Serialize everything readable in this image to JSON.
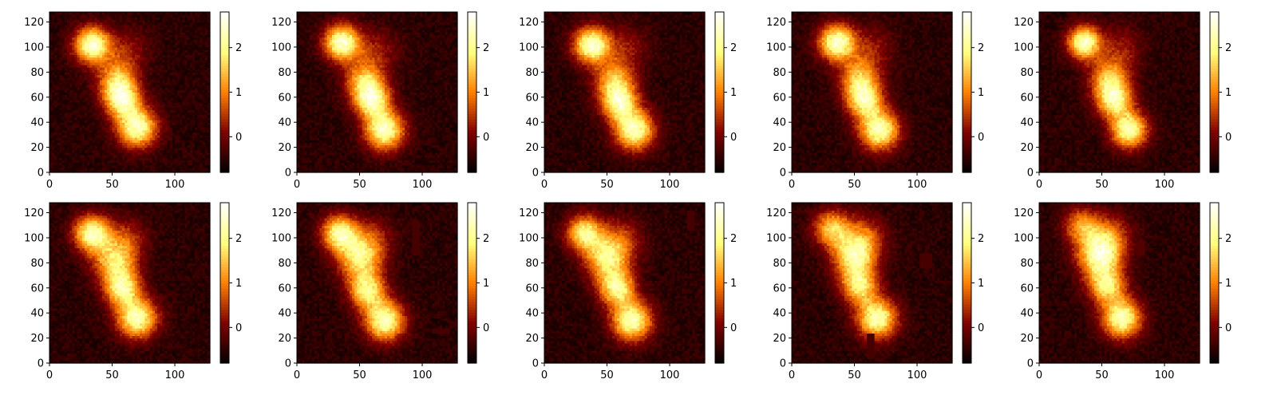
{
  "chart_data": {
    "type": "heatmap",
    "colormap": "afmhot",
    "grid": false,
    "layout": {
      "rows": 2,
      "cols": 5
    },
    "x_ticks": [
      0,
      50,
      100
    ],
    "y_ticks": [
      0,
      20,
      40,
      60,
      80,
      100,
      120
    ],
    "xlim": [
      0,
      128
    ],
    "ylim": [
      0,
      128
    ],
    "colorbar": {
      "ticks": [
        0,
        1,
        2
      ],
      "range": [
        -0.8,
        2.8
      ]
    },
    "panels": [
      {
        "blobs": [
          {
            "x": 34,
            "y": 102,
            "amp": 3.0,
            "sigma": 10
          },
          {
            "x": 54,
            "y": 74,
            "amp": 1.8,
            "sigma": 11
          },
          {
            "x": 58,
            "y": 58,
            "amp": 2.4,
            "sigma": 10
          },
          {
            "x": 70,
            "y": 36,
            "amp": 2.8,
            "sigma": 11
          },
          {
            "x": 62,
            "y": 98,
            "amp": 0.7,
            "sigma": 12
          }
        ],
        "patches": []
      },
      {
        "blobs": [
          {
            "x": 36,
            "y": 104,
            "amp": 3.0,
            "sigma": 10
          },
          {
            "x": 54,
            "y": 74,
            "amp": 1.8,
            "sigma": 11
          },
          {
            "x": 60,
            "y": 58,
            "amp": 2.4,
            "sigma": 10
          },
          {
            "x": 70,
            "y": 34,
            "amp": 2.8,
            "sigma": 11
          },
          {
            "x": 64,
            "y": 98,
            "amp": 0.7,
            "sigma": 12
          }
        ],
        "patches": []
      },
      {
        "blobs": [
          {
            "x": 38,
            "y": 102,
            "amp": 3.0,
            "sigma": 10
          },
          {
            "x": 56,
            "y": 74,
            "amp": 1.8,
            "sigma": 11
          },
          {
            "x": 60,
            "y": 56,
            "amp": 2.4,
            "sigma": 10
          },
          {
            "x": 72,
            "y": 34,
            "amp": 2.8,
            "sigma": 11
          },
          {
            "x": 66,
            "y": 100,
            "amp": 0.7,
            "sigma": 12
          }
        ],
        "patches": []
      },
      {
        "blobs": [
          {
            "x": 36,
            "y": 104,
            "amp": 3.0,
            "sigma": 10
          },
          {
            "x": 54,
            "y": 76,
            "amp": 1.8,
            "sigma": 11
          },
          {
            "x": 58,
            "y": 58,
            "amp": 2.4,
            "sigma": 10
          },
          {
            "x": 70,
            "y": 34,
            "amp": 2.8,
            "sigma": 11
          },
          {
            "x": 64,
            "y": 100,
            "amp": 0.7,
            "sigma": 12
          }
        ],
        "patches": []
      },
      {
        "blobs": [
          {
            "x": 36,
            "y": 104,
            "amp": 3.0,
            "sigma": 9
          },
          {
            "x": 56,
            "y": 76,
            "amp": 1.8,
            "sigma": 11
          },
          {
            "x": 60,
            "y": 58,
            "amp": 2.4,
            "sigma": 10
          },
          {
            "x": 72,
            "y": 34,
            "amp": 2.8,
            "sigma": 10
          },
          {
            "x": 66,
            "y": 100,
            "amp": 0.7,
            "sigma": 12
          }
        ],
        "patches": []
      },
      {
        "blobs": [
          {
            "x": 34,
            "y": 104,
            "amp": 2.8,
            "sigma": 10
          },
          {
            "x": 52,
            "y": 82,
            "amp": 2.0,
            "sigma": 12
          },
          {
            "x": 58,
            "y": 60,
            "amp": 2.4,
            "sigma": 10
          },
          {
            "x": 70,
            "y": 36,
            "amp": 2.8,
            "sigma": 11
          },
          {
            "x": 62,
            "y": 100,
            "amp": 0.8,
            "sigma": 12
          }
        ],
        "patches": []
      },
      {
        "blobs": [
          {
            "x": 34,
            "y": 104,
            "amp": 2.6,
            "sigma": 10
          },
          {
            "x": 50,
            "y": 84,
            "amp": 2.2,
            "sigma": 12
          },
          {
            "x": 56,
            "y": 58,
            "amp": 2.4,
            "sigma": 10
          },
          {
            "x": 70,
            "y": 34,
            "amp": 2.8,
            "sigma": 11
          },
          {
            "x": 60,
            "y": 100,
            "amp": 0.8,
            "sigma": 12
          }
        ],
        "patches": [
          {
            "x0": 93,
            "x1": 97,
            "y0": 86,
            "y1": 114,
            "value": -0.3
          },
          {
            "x0": 108,
            "x1": 122,
            "y0": 25,
            "y1": 28,
            "value": -0.3
          }
        ]
      },
      {
        "blobs": [
          {
            "x": 32,
            "y": 104,
            "amp": 2.4,
            "sigma": 10
          },
          {
            "x": 50,
            "y": 84,
            "amp": 2.2,
            "sigma": 12
          },
          {
            "x": 58,
            "y": 60,
            "amp": 2.4,
            "sigma": 10
          },
          {
            "x": 70,
            "y": 34,
            "amp": 2.8,
            "sigma": 11
          },
          {
            "x": 62,
            "y": 100,
            "amp": 0.9,
            "sigma": 12
          }
        ],
        "patches": [
          {
            "x0": 114,
            "x1": 119,
            "y0": 106,
            "y1": 122,
            "value": -0.3
          }
        ]
      },
      {
        "blobs": [
          {
            "x": 32,
            "y": 108,
            "amp": 2.0,
            "sigma": 10
          },
          {
            "x": 50,
            "y": 86,
            "amp": 2.4,
            "sigma": 12
          },
          {
            "x": 54,
            "y": 62,
            "amp": 2.2,
            "sigma": 10
          },
          {
            "x": 68,
            "y": 36,
            "amp": 2.8,
            "sigma": 11
          },
          {
            "x": 58,
            "y": 102,
            "amp": 1.0,
            "sigma": 12
          }
        ],
        "patches": [
          {
            "x0": 103,
            "x1": 112,
            "y0": 77,
            "y1": 87,
            "value": -0.3
          },
          {
            "x0": 60,
            "x1": 65,
            "y0": 5,
            "y1": 23,
            "value": -0.3
          }
        ]
      },
      {
        "blobs": [
          {
            "x": 34,
            "y": 110,
            "amp": 1.6,
            "sigma": 10
          },
          {
            "x": 48,
            "y": 86,
            "amp": 2.6,
            "sigma": 12
          },
          {
            "x": 54,
            "y": 62,
            "amp": 2.2,
            "sigma": 10
          },
          {
            "x": 66,
            "y": 36,
            "amp": 2.8,
            "sigma": 11
          },
          {
            "x": 56,
            "y": 102,
            "amp": 1.2,
            "sigma": 12
          }
        ],
        "patches": [
          {
            "x0": 79,
            "x1": 83,
            "y0": 86,
            "y1": 98,
            "value": -0.2
          }
        ]
      }
    ]
  }
}
